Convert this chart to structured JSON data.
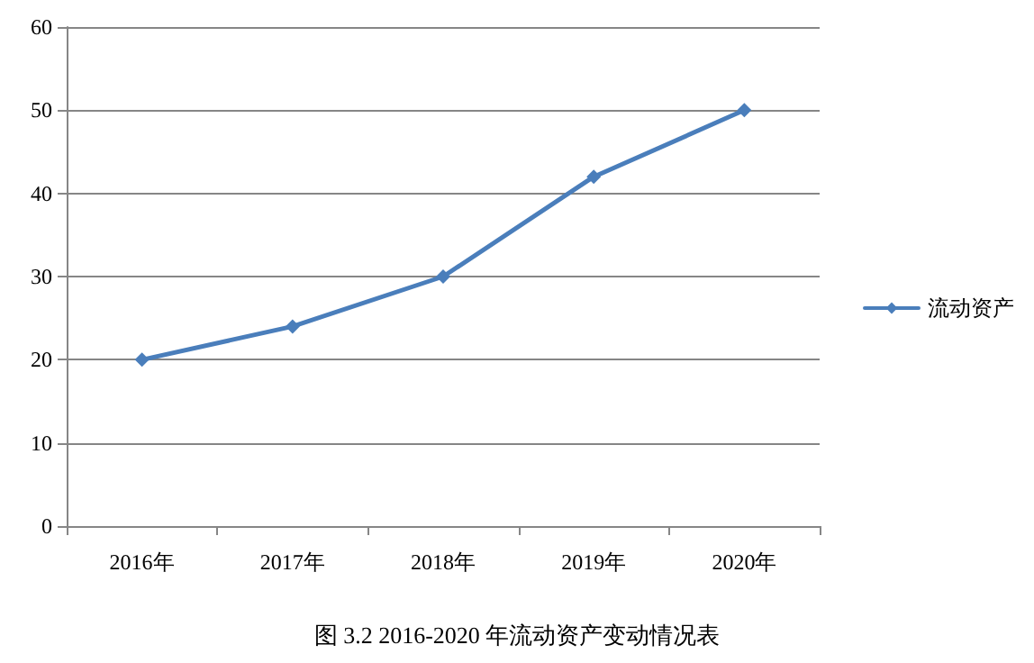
{
  "chart_data": {
    "type": "line",
    "title": "图 3.2 2016-2020 年流动资产变动情况表",
    "categories": [
      "2016年",
      "2017年",
      "2018年",
      "2019年",
      "2020年"
    ],
    "series": [
      {
        "name": "流动资产",
        "color": "#4a7ebb",
        "values": [
          20,
          24,
          30,
          42,
          50
        ]
      }
    ],
    "ylim": [
      0,
      60
    ],
    "yticks": [
      0,
      10,
      20,
      30,
      40,
      50,
      60
    ],
    "grid": "y",
    "legend": "right",
    "marker": "diamond",
    "line_style": "solid"
  }
}
